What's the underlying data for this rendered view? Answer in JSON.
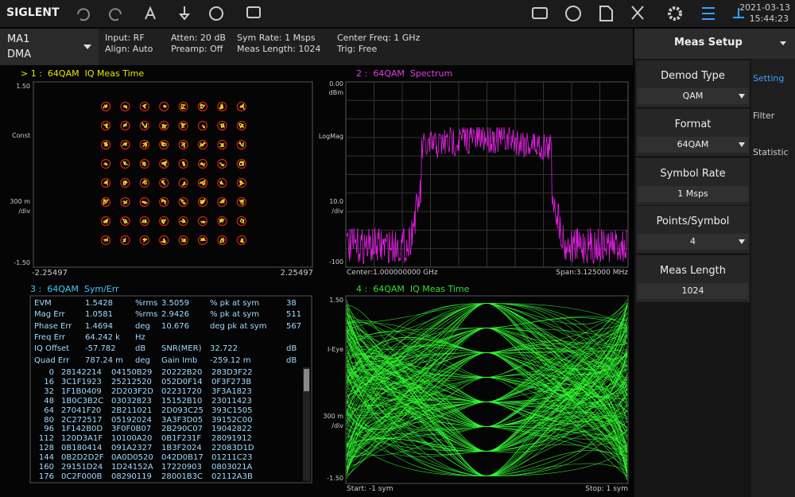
{
  "top_bar": {
    "brand": "SIGLENT",
    "date": "2021-03-13",
    "time": "15:44:23"
  },
  "info_bar": {
    "mode": "MA1",
    "submode": "DMA",
    "input": "Input: RF",
    "align": "Align: Auto",
    "atten": "Atten: 20 dB",
    "preamp": "Preamp: Off",
    "sym_rate": "Sym Rate: 1 Msps",
    "meas_length": "Meas Length: 1024",
    "center_freq": "Center Freq: 1 GHz",
    "trig": "Trig: Free"
  },
  "side_panel": {
    "title": "Meas Setup",
    "tabs": [
      "Setting",
      "Filter",
      "Statistic"
    ],
    "items": [
      {
        "label": "Demod Type",
        "value": "QAM"
      },
      {
        "label": "Format",
        "value": "64QAM"
      },
      {
        "label": "Symbol Rate",
        "value": "1 Msps"
      },
      {
        "label": "Points/Symbol",
        "value": "4"
      },
      {
        "label": "Meas Length",
        "value": "1024"
      }
    ]
  },
  "windows": [
    {
      "title": "> 1 :  64QAM  IQ Meas Time",
      "y_labels": [
        "1.50",
        "Const",
        "300 m",
        "/div",
        "-1.50"
      ],
      "x_labels": [
        "-2.25497",
        "2.25497"
      ]
    },
    {
      "title": "2 :  64QAM  Spectrum",
      "y_labels": [
        "0.00",
        "dBm",
        "LogMag",
        "10.0",
        "/div",
        "-100"
      ],
      "x_labels": [
        "Center:1.000000000 GHz",
        "Span:3.125000 MHz"
      ]
    },
    {
      "title": "3 :  64QAM  Sym/Err",
      "metrics": [
        [
          "EVM",
          "1.5428",
          "%rms",
          "3.5059",
          "% pk at sym",
          "38"
        ],
        [
          "Mag Err",
          "1.0581",
          "%rms",
          "2.9426",
          "% pk at sym",
          "511"
        ],
        [
          "Phase Err",
          "1.4694",
          "deg",
          "10.676",
          "deg pk at sym",
          "567"
        ],
        [
          "Freq Err",
          "64.242 k",
          "Hz"
        ],
        [
          "IQ Offset",
          "-57.782",
          "dB",
          "SNR(MER)",
          "32.722",
          "dB"
        ],
        [
          "Quad Err",
          "787.24 m",
          "deg",
          "Gain Imb",
          "-259.12 m",
          "dB"
        ]
      ],
      "symbols": [
        [
          "0",
          "28142214",
          "04150B29",
          "20222B20",
          "283D3F22"
        ],
        [
          "16",
          "3C1F1923",
          "25212520",
          "052D0F14",
          "0F3F273B"
        ],
        [
          "32",
          "1F1B0409",
          "2D203F2D",
          "02231720",
          "3F3A1823"
        ],
        [
          "48",
          "1B0C3B2C",
          "03032823",
          "15152B10",
          "23011423"
        ],
        [
          "64",
          "27041F20",
          "2B211021",
          "2D093C25",
          "393C1505"
        ],
        [
          "80",
          "2C272517",
          "05192024",
          "3A3F3D05",
          "39152C00"
        ],
        [
          "96",
          "1F142B0D",
          "3F0F0B07",
          "2B290C07",
          "19042822"
        ],
        [
          "112",
          "120D3A1F",
          "10100A20",
          "0B1F231F",
          "28091912"
        ],
        [
          "128",
          "0B180414",
          "091A2327",
          "1B3F2024",
          "22083D1D"
        ],
        [
          "144",
          "0B2D2D2F",
          "0A0D0520",
          "042D0B17",
          "01211C23"
        ],
        [
          "160",
          "29151D24",
          "1D24152A",
          "17220903",
          "0803021A"
        ],
        [
          "176",
          "0C2F000B",
          "08290119",
          "28001B3C",
          "02112A3B"
        ]
      ]
    },
    {
      "title": "4 :  64QAM  IQ Meas Time",
      "y_labels": [
        "1.50",
        "I-Eye",
        "300 m",
        "/div",
        "-1.50"
      ],
      "x_labels": [
        "Start: -1 sym",
        "Stop: 1 sym"
      ]
    }
  ]
}
